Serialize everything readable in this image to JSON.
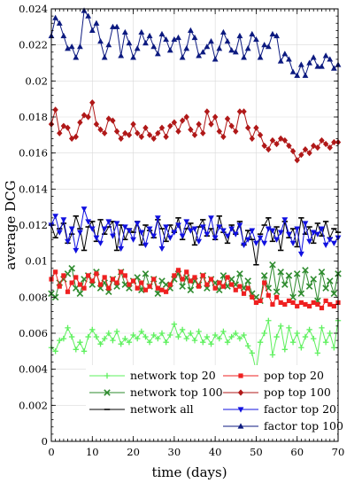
{
  "chart_data": {
    "type": "line",
    "title": "",
    "xlabel": "time (days)",
    "ylabel": "average DCG",
    "xlim": [
      0,
      70
    ],
    "ylim": [
      0,
      0.024
    ],
    "x_ticks": [
      0,
      10,
      20,
      30,
      40,
      50,
      60,
      70
    ],
    "x_tick_labels": [
      "0",
      "10",
      "20",
      "30",
      "40",
      "50",
      "60",
      "70"
    ],
    "y_ticks": [
      0,
      0.002,
      0.004,
      0.006,
      0.008,
      0.01,
      0.012,
      0.014,
      0.016,
      0.018,
      0.02,
      0.022,
      0.024
    ],
    "y_tick_labels": [
      "0",
      "0.002",
      "0.004",
      "0.006",
      "0.008",
      "0.01",
      "0.012",
      "0.014",
      "0.016",
      "0.018",
      "0.02",
      "0.022",
      "0.024"
    ],
    "grid": true,
    "legend_position": "bottom",
    "x": [
      0,
      1,
      2,
      3,
      4,
      5,
      6,
      7,
      8,
      9,
      10,
      11,
      12,
      13,
      14,
      15,
      16,
      17,
      18,
      19,
      20,
      21,
      22,
      23,
      24,
      25,
      26,
      27,
      28,
      29,
      30,
      31,
      32,
      33,
      34,
      35,
      36,
      37,
      38,
      39,
      40,
      41,
      42,
      43,
      44,
      45,
      46,
      47,
      48,
      49,
      50,
      51,
      52,
      53,
      54,
      55,
      56,
      57,
      58,
      59,
      60,
      61,
      62,
      63,
      64,
      65,
      66,
      67,
      68,
      69,
      70
    ],
    "series": [
      {
        "name": "network top 20",
        "color": "#5ef05e",
        "marker": "plus",
        "values": [
          0.0052,
          0.005,
          0.0056,
          0.0057,
          0.0063,
          0.0058,
          0.0051,
          0.0055,
          0.005,
          0.0058,
          0.0062,
          0.0058,
          0.0054,
          0.0057,
          0.006,
          0.0056,
          0.0061,
          0.0054,
          0.0057,
          0.0055,
          0.0059,
          0.0057,
          0.0061,
          0.0058,
          0.0055,
          0.0059,
          0.0057,
          0.006,
          0.0055,
          0.0059,
          0.0065,
          0.0058,
          0.0062,
          0.0057,
          0.006,
          0.0056,
          0.0061,
          0.0055,
          0.0058,
          0.0054,
          0.0059,
          0.0057,
          0.0061,
          0.0055,
          0.0058,
          0.006,
          0.0057,
          0.0059,
          0.0053,
          0.0049,
          0.0039,
          0.0055,
          0.006,
          0.0067,
          0.0048,
          0.0058,
          0.0064,
          0.0051,
          0.0063,
          0.0055,
          0.006,
          0.0052,
          0.0058,
          0.0062,
          0.0057,
          0.0049,
          0.0063,
          0.0055,
          0.006,
          0.0052,
          0.0067
        ]
      },
      {
        "name": "network top 100",
        "color": "#2e8b2e",
        "marker": "x",
        "values": [
          0.0082,
          0.008,
          0.0088,
          0.009,
          0.0093,
          0.0096,
          0.0085,
          0.0082,
          0.009,
          0.0092,
          0.0087,
          0.0094,
          0.0085,
          0.0088,
          0.0083,
          0.009,
          0.0086,
          0.0094,
          0.0087,
          0.0085,
          0.0089,
          0.0091,
          0.0084,
          0.0093,
          0.0086,
          0.009,
          0.0082,
          0.0089,
          0.0087,
          0.0085,
          0.009,
          0.0093,
          0.0086,
          0.0091,
          0.0084,
          0.0089,
          0.0087,
          0.0092,
          0.0085,
          0.009,
          0.0088,
          0.0084,
          0.0092,
          0.0086,
          0.009,
          0.0087,
          0.0093,
          0.0085,
          0.0089,
          0.0082,
          0.008,
          0.0078,
          0.0092,
          0.0085,
          0.0098,
          0.0083,
          0.0094,
          0.0087,
          0.0092,
          0.008,
          0.0093,
          0.0082,
          0.0095,
          0.0086,
          0.009,
          0.0078,
          0.0094,
          0.0085,
          0.0089,
          0.0082,
          0.0093
        ]
      },
      {
        "name": "network all",
        "color": "#000000",
        "marker": "dash",
        "values": [
          0.012,
          0.0113,
          0.0118,
          0.0121,
          0.011,
          0.0115,
          0.0125,
          0.0118,
          0.0106,
          0.0119,
          0.0122,
          0.0111,
          0.0123,
          0.0115,
          0.0119,
          0.0122,
          0.0106,
          0.012,
          0.0112,
          0.0118,
          0.0116,
          0.0122,
          0.0109,
          0.012,
          0.0117,
          0.0113,
          0.0123,
          0.0118,
          0.0111,
          0.012,
          0.0116,
          0.0124,
          0.0112,
          0.0118,
          0.0121,
          0.0109,
          0.0119,
          0.0123,
          0.0114,
          0.0118,
          0.0112,
          0.0125,
          0.0116,
          0.011,
          0.012,
          0.0115,
          0.0122,
          0.0109,
          0.0117,
          0.0112,
          0.0098,
          0.0115,
          0.012,
          0.0124,
          0.0111,
          0.0119,
          0.0106,
          0.0122,
          0.0113,
          0.0118,
          0.0108,
          0.0124,
          0.0115,
          0.0119,
          0.011,
          0.0121,
          0.0114,
          0.0122,
          0.0113,
          0.0118,
          0.0116
        ]
      },
      {
        "name": "pop top 20",
        "color": "#ef2020",
        "marker": "square",
        "values": [
          0.009,
          0.0094,
          0.0086,
          0.0092,
          0.0083,
          0.0088,
          0.0091,
          0.0087,
          0.0085,
          0.0092,
          0.0089,
          0.0093,
          0.0087,
          0.0091,
          0.0085,
          0.009,
          0.0088,
          0.0094,
          0.0092,
          0.0087,
          0.0089,
          0.0085,
          0.0088,
          0.0084,
          0.0086,
          0.009,
          0.0085,
          0.0084,
          0.0083,
          0.0087,
          0.0092,
          0.0095,
          0.009,
          0.0094,
          0.0089,
          0.0091,
          0.0086,
          0.0092,
          0.0087,
          0.009,
          0.0085,
          0.0088,
          0.0086,
          0.0091,
          0.0087,
          0.0084,
          0.0086,
          0.0082,
          0.0085,
          0.008,
          0.0077,
          0.0078,
          0.0088,
          0.0081,
          0.0076,
          0.008,
          0.0077,
          0.0076,
          0.0078,
          0.0077,
          0.0075,
          0.0077,
          0.0076,
          0.0075,
          0.0077,
          0.0076,
          0.0074,
          0.0078,
          0.0076,
          0.0075,
          0.0077
        ]
      },
      {
        "name": "pop top 100",
        "color": "#b01818",
        "marker": "diamond",
        "values": [
          0.0176,
          0.0184,
          0.0171,
          0.0175,
          0.0174,
          0.0168,
          0.0169,
          0.0177,
          0.0181,
          0.018,
          0.0188,
          0.0176,
          0.0173,
          0.0171,
          0.0179,
          0.0178,
          0.0172,
          0.0168,
          0.0171,
          0.017,
          0.0176,
          0.0171,
          0.0169,
          0.0174,
          0.017,
          0.0168,
          0.0171,
          0.0174,
          0.0169,
          0.0175,
          0.0177,
          0.0172,
          0.0178,
          0.018,
          0.0173,
          0.017,
          0.0176,
          0.0171,
          0.0183,
          0.0176,
          0.018,
          0.0172,
          0.0169,
          0.0179,
          0.0175,
          0.0172,
          0.0183,
          0.0183,
          0.0174,
          0.0168,
          0.0174,
          0.017,
          0.0164,
          0.0162,
          0.0167,
          0.0165,
          0.0168,
          0.0167,
          0.0164,
          0.0161,
          0.0156,
          0.0159,
          0.0162,
          0.016,
          0.0164,
          0.0163,
          0.0167,
          0.0165,
          0.0163,
          0.0166,
          0.0166
        ]
      },
      {
        "name": "factor top 20",
        "color": "#1010e0",
        "marker": "triangle-down",
        "values": [
          0.012,
          0.0125,
          0.0116,
          0.0123,
          0.0111,
          0.0118,
          0.0106,
          0.0116,
          0.0129,
          0.0122,
          0.0118,
          0.0113,
          0.011,
          0.0118,
          0.0122,
          0.0114,
          0.0121,
          0.0107,
          0.0119,
          0.0117,
          0.0112,
          0.0121,
          0.0116,
          0.0109,
          0.0118,
          0.0114,
          0.0124,
          0.0107,
          0.0119,
          0.0113,
          0.0116,
          0.012,
          0.0114,
          0.0122,
          0.0117,
          0.0118,
          0.0111,
          0.0119,
          0.0115,
          0.0124,
          0.0113,
          0.0119,
          0.0117,
          0.0114,
          0.0118,
          0.0115,
          0.012,
          0.0109,
          0.0112,
          0.0117,
          0.011,
          0.0113,
          0.011,
          0.0118,
          0.0117,
          0.0112,
          0.0116,
          0.0123,
          0.0115,
          0.011,
          0.0118,
          0.0104,
          0.0121,
          0.0111,
          0.0116,
          0.0115,
          0.0118,
          0.0109,
          0.0112,
          0.011,
          0.0113
        ]
      },
      {
        "name": "factor top 100",
        "color": "#0c1a80",
        "marker": "triangle-up",
        "values": [
          0.0225,
          0.0235,
          0.0232,
          0.0225,
          0.0218,
          0.0219,
          0.0213,
          0.0219,
          0.0239,
          0.0236,
          0.0228,
          0.0232,
          0.0222,
          0.0213,
          0.022,
          0.023,
          0.023,
          0.0214,
          0.0227,
          0.0221,
          0.0213,
          0.0218,
          0.0227,
          0.0221,
          0.0225,
          0.0219,
          0.0215,
          0.0226,
          0.0223,
          0.0217,
          0.0223,
          0.0224,
          0.0213,
          0.0218,
          0.0228,
          0.0224,
          0.0214,
          0.0216,
          0.0219,
          0.0222,
          0.0212,
          0.0218,
          0.0227,
          0.0222,
          0.0217,
          0.0216,
          0.0225,
          0.0213,
          0.0218,
          0.0226,
          0.0223,
          0.0213,
          0.022,
          0.0219,
          0.0226,
          0.0225,
          0.0211,
          0.0215,
          0.0212,
          0.0205,
          0.0203,
          0.0209,
          0.0203,
          0.021,
          0.0213,
          0.0208,
          0.0208,
          0.0214,
          0.0212,
          0.0207,
          0.0209
        ]
      }
    ]
  }
}
